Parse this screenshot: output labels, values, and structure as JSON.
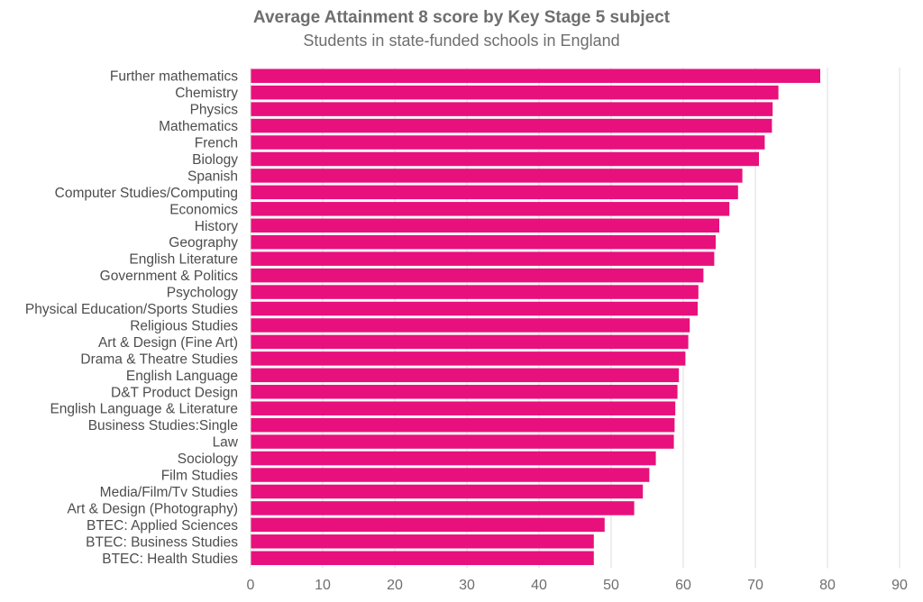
{
  "chart_data": {
    "type": "bar",
    "orientation": "horizontal",
    "title": "Average Attainment 8 score by Key Stage 5 subject",
    "subtitle": "Students in state-funded schools in England",
    "categories": [
      "Further mathematics",
      "Chemistry",
      "Physics",
      "Mathematics",
      "French",
      "Biology",
      "Spanish",
      "Computer Studies/Computing",
      "Economics",
      "History",
      "Geography",
      "English Literature",
      "Government & Politics",
      "Psychology",
      "Physical Education/Sports Studies",
      "Religious Studies",
      "Art & Design (Fine Art)",
      "Drama & Theatre Studies",
      "English Language",
      "D&T Product Design",
      "English Language & Literature",
      "Business Studies:Single",
      "Law",
      "Sociology",
      "Film Studies",
      "Media/Film/Tv Studies",
      "Art & Design (Photography)",
      "BTEC: Applied Sciences",
      "BTEC: Business Studies",
      "BTEC: Health Studies"
    ],
    "values": [
      79.0,
      73.2,
      72.4,
      72.3,
      71.3,
      70.5,
      68.2,
      67.6,
      66.4,
      65.0,
      64.5,
      64.3,
      62.8,
      62.1,
      62.0,
      60.9,
      60.7,
      60.3,
      59.4,
      59.2,
      58.9,
      58.8,
      58.7,
      56.2,
      55.3,
      54.4,
      53.2,
      49.1,
      47.6,
      47.6
    ],
    "xlim": [
      0,
      90
    ],
    "xticks": [
      "0",
      "10",
      "20",
      "30",
      "40",
      "50",
      "60",
      "70",
      "80",
      "90"
    ],
    "grid": true,
    "bar_color": "#e8107c"
  }
}
